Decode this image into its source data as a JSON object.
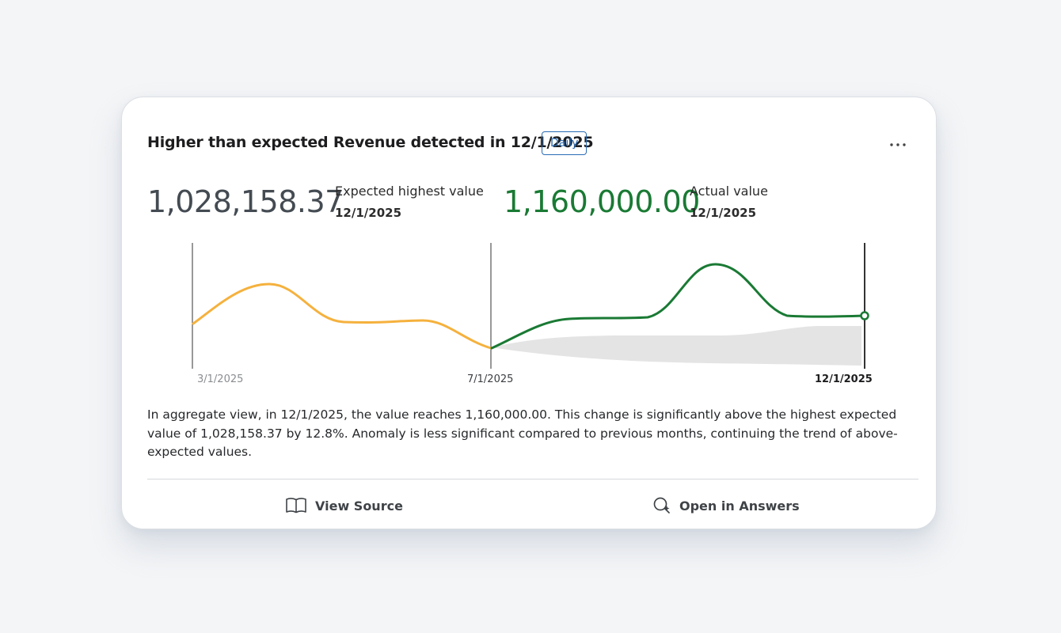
{
  "card": {
    "title": "Higher than expected Revenue detected in 12/1/2025",
    "badge": "Daily",
    "more_icon": "more-horizontal-icon",
    "more_label": "..."
  },
  "metrics": {
    "expected": {
      "value": "1,028,158.37",
      "label": "Expected highest value",
      "date": "12/1/2025"
    },
    "actual": {
      "value": "1,160,000.00",
      "label": "Actual value",
      "date": "12/1/2025"
    }
  },
  "chart_data": {
    "type": "line",
    "x_ticks": [
      "3/1/2025",
      "7/1/2025",
      "12/1/2025"
    ],
    "series": [
      {
        "color": "#f5b13d",
        "segment": "history"
      },
      {
        "color": "#1a7a34",
        "segment": "actual"
      }
    ],
    "expected_band_color": "#e4e4e4",
    "markers": [
      "3/1/2025",
      "7/1/2025",
      "12/1/2025"
    ],
    "grid": false,
    "legend": "none"
  },
  "summary": "In aggregate view, in 12/1/2025, the value reaches 1,160,000.00. This change is significantly above the highest expected value of 1,028,158.37 by 12.8%. Anomaly is less significant compared to previous months, continuing the trend of above-expected values.",
  "actions": {
    "view_source": {
      "label": "View Source",
      "icon": "book-open-icon"
    },
    "open_answers": {
      "label": "Open in Answers",
      "icon": "sparkle-search-icon"
    }
  }
}
